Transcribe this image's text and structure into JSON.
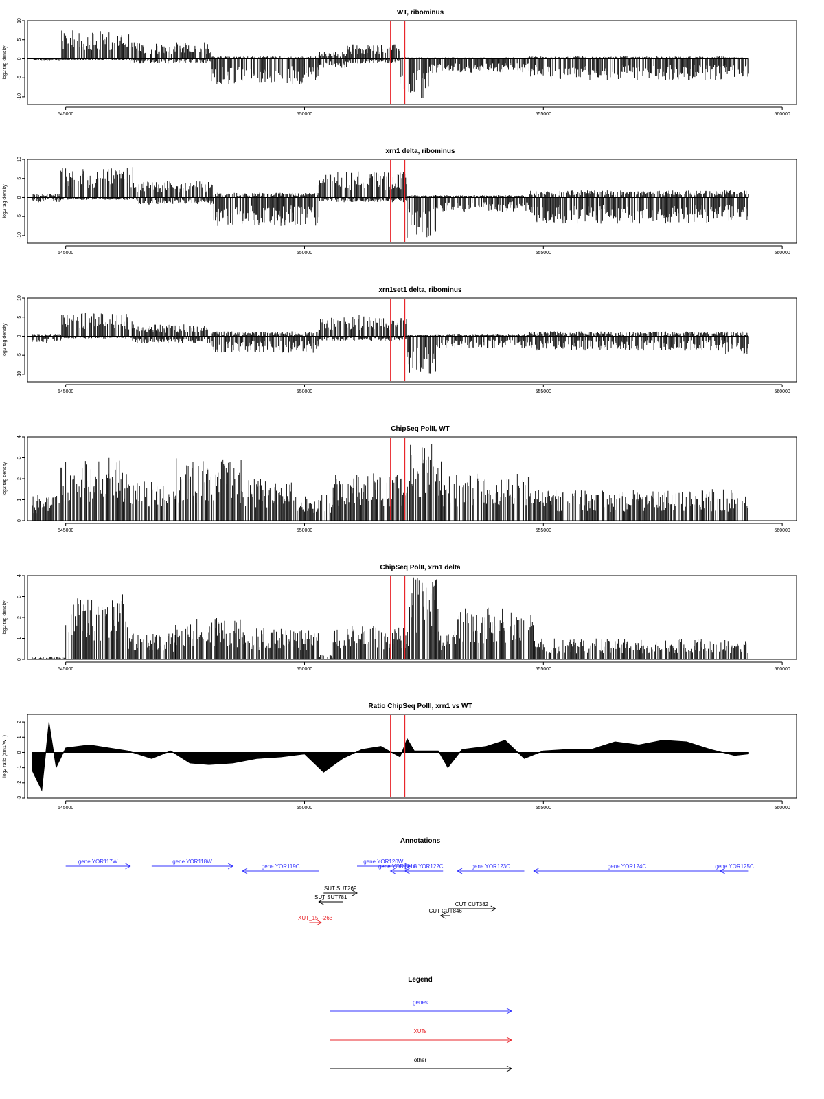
{
  "genome": {
    "start": 544200,
    "end": 559500,
    "ticks": [
      "545000",
      "550000",
      "555000",
      "560000"
    ],
    "tick_values": [
      545000,
      550000,
      555000,
      560000
    ],
    "markers": [
      551800,
      552100
    ]
  },
  "colors": {
    "signal": "#000000",
    "marker": "#e8262b",
    "gene": "#3333ff",
    "xut": "#e8262b",
    "other": "#000000"
  },
  "chart_data": [
    {
      "type": "area",
      "title": "WT, ribominus",
      "ylabel": "log2 tag density",
      "ylim": [
        -12,
        10
      ],
      "yticks": [
        "10",
        "5",
        "0",
        "-5",
        "-10"
      ],
      "ytick_values": [
        10,
        5,
        0,
        -5,
        -10
      ],
      "segments": [
        {
          "from": 544300,
          "to": 544900,
          "pos": 0.2,
          "neg": 0.5
        },
        {
          "from": 544900,
          "to": 546350,
          "pos": 6,
          "neg": 0.3
        },
        {
          "from": 546350,
          "to": 548050,
          "pos": 3.5,
          "neg": 1
        },
        {
          "from": 548050,
          "to": 550300,
          "pos": 0.5,
          "neg": 5.5
        },
        {
          "from": 550300,
          "to": 550900,
          "pos": 1.5,
          "neg": 2
        },
        {
          "from": 550900,
          "to": 552000,
          "pos": 3,
          "neg": 1
        },
        {
          "from": 552000,
          "to": 552600,
          "pos": 0.3,
          "neg": 8.5
        },
        {
          "from": 552600,
          "to": 554700,
          "pos": 0.3,
          "neg": 3
        },
        {
          "from": 554700,
          "to": 558800,
          "pos": 0.5,
          "neg": 4.5
        },
        {
          "from": 558800,
          "to": 559300,
          "pos": 0.3,
          "neg": 4
        }
      ]
    },
    {
      "type": "area",
      "title": "xrn1 delta, ribominus",
      "ylabel": "log2 tag density",
      "ylim": [
        -12,
        10
      ],
      "yticks": [
        "10",
        "5",
        "0",
        "-5",
        "-10"
      ],
      "ytick_values": [
        10,
        5,
        0,
        -5,
        -10
      ],
      "segments": [
        {
          "from": 544300,
          "to": 544900,
          "pos": 0.8,
          "neg": 1
        },
        {
          "from": 544900,
          "to": 546450,
          "pos": 6.5,
          "neg": 0.5
        },
        {
          "from": 546450,
          "to": 548100,
          "pos": 3.5,
          "neg": 1.5
        },
        {
          "from": 548100,
          "to": 550300,
          "pos": 1,
          "neg": 6
        },
        {
          "from": 550300,
          "to": 552150,
          "pos": 5.5,
          "neg": 1
        },
        {
          "from": 552150,
          "to": 552750,
          "pos": 0.5,
          "neg": 8.5
        },
        {
          "from": 552750,
          "to": 554700,
          "pos": 0.5,
          "neg": 3
        },
        {
          "from": 554700,
          "to": 558800,
          "pos": 1.5,
          "neg": 5.5
        },
        {
          "from": 558800,
          "to": 559300,
          "pos": 1.5,
          "neg": 5
        }
      ]
    },
    {
      "type": "area",
      "title": "xrn1set1 delta, ribominus",
      "ylabel": "log2 tag density",
      "ylim": [
        -12,
        10
      ],
      "yticks": [
        "10",
        "5",
        "0",
        "-5",
        "-10"
      ],
      "ytick_values": [
        10,
        5,
        0,
        -5,
        -10
      ],
      "segments": [
        {
          "from": 544300,
          "to": 544900,
          "pos": 0.5,
          "neg": 1.5
        },
        {
          "from": 544900,
          "to": 546400,
          "pos": 5,
          "neg": 0.5
        },
        {
          "from": 546400,
          "to": 548050,
          "pos": 2.5,
          "neg": 1.5
        },
        {
          "from": 548050,
          "to": 550300,
          "pos": 1,
          "neg": 3.5
        },
        {
          "from": 550300,
          "to": 552150,
          "pos": 4.5,
          "neg": 1
        },
        {
          "from": 552150,
          "to": 552750,
          "pos": 0.3,
          "neg": 8
        },
        {
          "from": 552750,
          "to": 554700,
          "pos": 0.5,
          "neg": 2.5
        },
        {
          "from": 554700,
          "to": 558800,
          "pos": 1,
          "neg": 3
        },
        {
          "from": 558800,
          "to": 559300,
          "pos": 1,
          "neg": 4
        }
      ]
    },
    {
      "type": "area",
      "title": "ChipSeq PolII, WT",
      "ylabel": "log2 tag density",
      "ylim": [
        0,
        4
      ],
      "yticks": [
        "4",
        "3",
        "2",
        "1",
        "0"
      ],
      "ytick_values": [
        4,
        3,
        2,
        1,
        0
      ],
      "segments": [
        {
          "from": 544300,
          "to": 544900,
          "pos": 1,
          "neg": 0
        },
        {
          "from": 544900,
          "to": 546300,
          "pos": 2.4,
          "neg": 0
        },
        {
          "from": 546300,
          "to": 547300,
          "pos": 1.5,
          "neg": 0
        },
        {
          "from": 547300,
          "to": 548700,
          "pos": 2.4,
          "neg": 0
        },
        {
          "from": 548700,
          "to": 549800,
          "pos": 1.6,
          "neg": 0
        },
        {
          "from": 549800,
          "to": 550600,
          "pos": 1,
          "neg": 0
        },
        {
          "from": 550600,
          "to": 552200,
          "pos": 1.8,
          "neg": 0
        },
        {
          "from": 552200,
          "to": 552900,
          "pos": 3,
          "neg": 0
        },
        {
          "from": 552900,
          "to": 554800,
          "pos": 1.8,
          "neg": 0
        },
        {
          "from": 554800,
          "to": 559300,
          "pos": 1.2,
          "neg": 0
        }
      ]
    },
    {
      "type": "area",
      "title": "ChipSeq PolII, xrn1 delta",
      "ylabel": "log2 tag density",
      "ylim": [
        0,
        4
      ],
      "yticks": [
        "4",
        "3",
        "2",
        "1",
        "0"
      ],
      "ytick_values": [
        4,
        3,
        2,
        1,
        0
      ],
      "segments": [
        {
          "from": 544300,
          "to": 545000,
          "pos": 0.1,
          "neg": 0
        },
        {
          "from": 545000,
          "to": 546300,
          "pos": 2.5,
          "neg": 0
        },
        {
          "from": 546300,
          "to": 547300,
          "pos": 1,
          "neg": 0
        },
        {
          "from": 547300,
          "to": 548700,
          "pos": 1.6,
          "neg": 0
        },
        {
          "from": 548700,
          "to": 550300,
          "pos": 1.2,
          "neg": 0
        },
        {
          "from": 550300,
          "to": 550600,
          "pos": 0.2,
          "neg": 0
        },
        {
          "from": 550600,
          "to": 552200,
          "pos": 1.3,
          "neg": 0
        },
        {
          "from": 552200,
          "to": 552800,
          "pos": 3.2,
          "neg": 0
        },
        {
          "from": 552800,
          "to": 553200,
          "pos": 1.2,
          "neg": 0
        },
        {
          "from": 553200,
          "to": 554800,
          "pos": 2,
          "neg": 0
        },
        {
          "from": 554800,
          "to": 559300,
          "pos": 0.8,
          "neg": 0
        }
      ]
    },
    {
      "type": "area",
      "title": "Ratio ChipSeq PolII, xrn1 vs WT",
      "ylabel": "log2 ratio (xrn1/WT)",
      "ylim": [
        -3,
        2.5
      ],
      "yticks": [
        "2",
        "1",
        "0",
        "-1",
        "-2",
        "-3"
      ],
      "ytick_values": [
        2,
        1,
        0,
        -1,
        -2,
        -3
      ],
      "x": [
        544300,
        544500,
        544650,
        544800,
        545000,
        545500,
        546300,
        546800,
        547200,
        547600,
        548000,
        548500,
        549000,
        549500,
        550000,
        550400,
        550800,
        551200,
        551600,
        552000,
        552150,
        552300,
        552800,
        553000,
        553300,
        553800,
        554200,
        554600,
        555000,
        555500,
        556000,
        556500,
        557000,
        557500,
        558000,
        558500,
        559000,
        559300
      ],
      "y": [
        -1.2,
        -2.5,
        2,
        -1,
        0.3,
        0.5,
        0.1,
        -0.4,
        0.1,
        -0.7,
        -0.8,
        -0.7,
        -0.4,
        -0.3,
        -0.1,
        -1.3,
        -0.4,
        0.2,
        0.4,
        -0.3,
        0.9,
        0.1,
        0.1,
        -1,
        0.2,
        0.4,
        0.8,
        -0.4,
        0.1,
        0.2,
        0.2,
        0.7,
        0.5,
        0.8,
        0.7,
        0.2,
        -0.2,
        -0.1
      ]
    }
  ],
  "annotations": {
    "title": "Annotations",
    "items": [
      {
        "label": "gene YOR117W",
        "from": 545000,
        "to": 546350,
        "dir": 1,
        "row": 0,
        "kind": "gene"
      },
      {
        "label": "gene YOR118W",
        "from": 546800,
        "to": 548500,
        "dir": 1,
        "row": 0,
        "kind": "gene"
      },
      {
        "label": "gene YOR119C",
        "from": 548700,
        "to": 550300,
        "dir": -1,
        "row": 1,
        "kind": "gene"
      },
      {
        "label": "gene YOR120W",
        "from": 551100,
        "to": 552200,
        "dir": 1,
        "row": 0,
        "kind": "gene"
      },
      {
        "label": "gene YOR121C",
        "from": 551800,
        "to": 552100,
        "dir": -1,
        "row": 1,
        "kind": "gene"
      },
      {
        "label": "gene YOR122C",
        "from": 552100,
        "to": 552900,
        "dir": -1,
        "row": 1,
        "kind": "gene"
      },
      {
        "label": "gene YOR123C",
        "from": 553200,
        "to": 554600,
        "dir": -1,
        "row": 1,
        "kind": "gene"
      },
      {
        "label": "gene YOR124C",
        "from": 554800,
        "to": 558700,
        "dir": -1,
        "row": 1,
        "kind": "gene"
      },
      {
        "label": "gene YOR125C",
        "from": 558700,
        "to": 559300,
        "dir": -1,
        "row": 1,
        "kind": "gene"
      },
      {
        "label": "SUT SUT269",
        "from": 550400,
        "to": 551100,
        "dir": 1,
        "row": 2,
        "kind": "other"
      },
      {
        "label": "SUT SUT781",
        "from": 550300,
        "to": 550800,
        "dir": -1,
        "row": 3,
        "kind": "other"
      },
      {
        "label": "CUT CUT382",
        "from": 553000,
        "to": 554000,
        "dir": 1,
        "row": 4,
        "kind": "other"
      },
      {
        "label": "CUT CUT846",
        "from": 552850,
        "to": 553050,
        "dir": -1,
        "row": 5,
        "kind": "other"
      },
      {
        "label": "XUT_15F-263",
        "from": 550100,
        "to": 550350,
        "dir": 1,
        "row": 6,
        "kind": "xut"
      }
    ]
  },
  "legend": {
    "title": "Legend",
    "items": [
      {
        "label": "genes",
        "kind": "gene"
      },
      {
        "label": "XUTs",
        "kind": "xut"
      },
      {
        "label": "other",
        "kind": "other"
      }
    ]
  }
}
